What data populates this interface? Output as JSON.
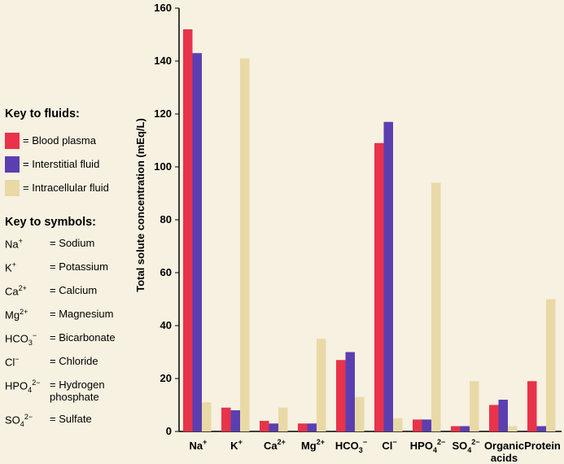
{
  "legend": {
    "fluids_title": "Key to fluids:",
    "fluids": [
      {
        "label": "= Blood plasma",
        "color": "#e8334a"
      },
      {
        "label": "= Interstitial fluid",
        "color": "#5b3fb0"
      },
      {
        "label": "= Intracellular fluid",
        "color": "#e9d9a6"
      }
    ],
    "symbols_title": "Key to symbols:",
    "symbols": [
      {
        "symbol": "Na+",
        "base": "Na",
        "sub": "",
        "sup": "+",
        "name": "= Sodium"
      },
      {
        "symbol": "K+",
        "base": "K",
        "sub": "",
        "sup": "+",
        "name": "= Potassium"
      },
      {
        "symbol": "Ca2+",
        "base": "Ca",
        "sub": "",
        "sup": "2+",
        "name": "= Calcium"
      },
      {
        "symbol": "Mg2+",
        "base": "Mg",
        "sub": "",
        "sup": "2+",
        "name": "= Magnesium"
      },
      {
        "symbol": "HCO3−",
        "base": "HCO",
        "sub": "3",
        "sup": "−",
        "name": "= Bicarbonate"
      },
      {
        "symbol": "Cl−",
        "base": "Cl",
        "sub": "",
        "sup": "−",
        "name": "= Chloride"
      },
      {
        "symbol": "HPO42−",
        "base": "HPO",
        "sub": "4",
        "sup": "2−",
        "name": "= Hydrogen phosphate"
      },
      {
        "symbol": "SO42−",
        "base": "SO",
        "sub": "4",
        "sup": "2−",
        "name": "= Sulfate"
      }
    ]
  },
  "chart_data": {
    "type": "bar",
    "ylabel": "Total solute concentration (mEq/L)",
    "ylim": [
      0,
      160
    ],
    "yticks": [
      0,
      20,
      40,
      60,
      80,
      100,
      120,
      140,
      160
    ],
    "categories": [
      {
        "base": "Na",
        "sub": "",
        "sup": "+"
      },
      {
        "base": "K",
        "sub": "",
        "sup": "+"
      },
      {
        "base": "Ca",
        "sub": "",
        "sup": "2+"
      },
      {
        "base": "Mg",
        "sub": "",
        "sup": "2+"
      },
      {
        "base": "HCO",
        "sub": "3",
        "sup": "−"
      },
      {
        "base": "Cl",
        "sub": "",
        "sup": "−"
      },
      {
        "base": "HPO",
        "sub": "4",
        "sup": "2−"
      },
      {
        "base": "SO",
        "sub": "4",
        "sup": "2−"
      },
      {
        "lines": [
          "Organic",
          "acids"
        ]
      },
      {
        "lines": [
          "Protein"
        ]
      }
    ],
    "series": [
      {
        "name": "Blood plasma",
        "color": "#e8334a",
        "values": [
          152,
          9,
          4,
          3,
          27,
          109,
          4.5,
          2,
          10,
          19
        ]
      },
      {
        "name": "Interstitial fluid",
        "color": "#5b3fb0",
        "values": [
          143,
          8,
          3,
          3,
          30,
          117,
          4.5,
          2,
          12,
          2
        ]
      },
      {
        "name": "Intracellular fluid",
        "color": "#e9d9a6",
        "values": [
          11,
          141,
          9,
          35,
          13,
          5,
          94,
          19,
          2,
          50
        ]
      }
    ],
    "grid": false
  }
}
